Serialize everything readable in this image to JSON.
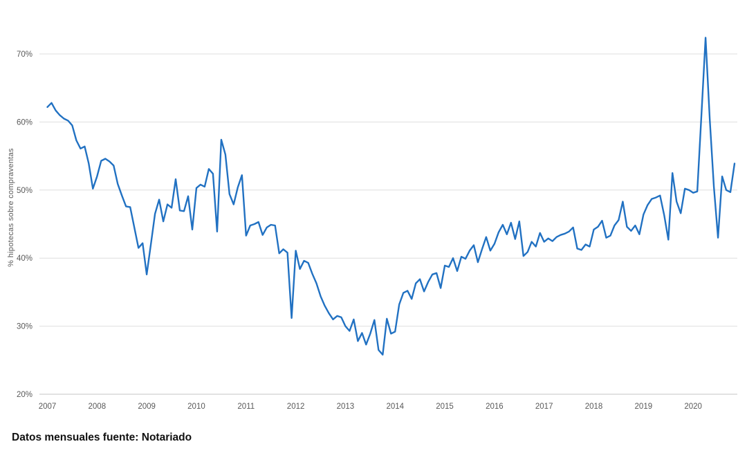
{
  "chart_data": {
    "type": "line",
    "title": "",
    "ylabel": "% hipotecas sobre compraventas",
    "caption": "Datos mensuales fuente: Notariado",
    "grid": "horizontal",
    "legend": "none",
    "line_color": "#2171c2",
    "grid_color": "#dedede",
    "axis_line_color": "#c4c4c4",
    "tick_text_color": "#595959",
    "x_start": "2007-01",
    "x_end": "2020-11",
    "x_tick_labels": [
      "2007",
      "2008",
      "2009",
      "2010",
      "2011",
      "2012",
      "2013",
      "2014",
      "2015",
      "2016",
      "2017",
      "2018",
      "2019",
      "2020"
    ],
    "y_axis": {
      "ylim": [
        20,
        75
      ],
      "ticks": [
        {
          "value": 20,
          "label": "20%"
        },
        {
          "value": 30,
          "label": "30%"
        },
        {
          "value": 40,
          "label": "40%"
        },
        {
          "value": 50,
          "label": "50%"
        },
        {
          "value": 60,
          "label": "60%"
        },
        {
          "value": 70,
          "label": "70%"
        }
      ]
    },
    "series": [
      {
        "name": "% hipotecas sobre compraventas",
        "frequency": "monthly",
        "values": [
          62.2,
          62.8,
          61.7,
          61.0,
          60.5,
          60.2,
          59.5,
          57.3,
          56.1,
          56.4,
          53.9,
          50.2,
          52.0,
          54.3,
          54.6,
          54.2,
          53.6,
          50.9,
          49.2,
          47.6,
          47.5,
          44.5,
          41.5,
          42.2,
          37.6,
          42.0,
          46.5,
          48.6,
          45.4,
          47.9,
          47.4,
          51.6,
          47.0,
          46.9,
          49.1,
          44.2,
          50.3,
          50.8,
          50.5,
          53.1,
          52.4,
          43.9,
          57.4,
          55.2,
          49.4,
          47.9,
          50.4,
          52.2,
          43.3,
          44.8,
          45.0,
          45.3,
          43.4,
          44.5,
          44.9,
          44.8,
          40.7,
          41.3,
          40.8,
          31.2,
          41.1,
          38.4,
          39.6,
          39.3,
          37.7,
          36.3,
          34.4,
          33.0,
          31.9,
          31.0,
          31.5,
          31.3,
          30.0,
          29.3,
          31.0,
          27.8,
          29.0,
          27.3,
          28.9,
          30.9,
          26.5,
          25.8,
          31.1,
          28.9,
          29.2,
          33.2,
          34.9,
          35.2,
          34.0,
          36.3,
          36.9,
          35.1,
          36.5,
          37.6,
          37.8,
          35.6,
          38.9,
          38.7,
          40.0,
          38.1,
          40.2,
          39.9,
          41.1,
          41.9,
          39.4,
          41.3,
          43.1,
          41.1,
          42.1,
          43.8,
          44.9,
          43.5,
          45.2,
          42.8,
          45.4,
          40.3,
          40.9,
          42.4,
          41.7,
          43.7,
          42.4,
          42.9,
          42.5,
          43.1,
          43.4,
          43.6,
          43.9,
          44.5,
          41.4,
          41.2,
          42.0,
          41.7,
          44.2,
          44.6,
          45.5,
          43.0,
          43.3,
          44.8,
          45.6,
          48.3,
          44.6,
          44.0,
          44.8,
          43.5,
          46.4,
          47.8,
          48.7,
          48.9,
          49.2,
          46.3,
          42.7,
          52.5,
          48.3,
          46.6,
          50.2,
          50.0,
          49.6,
          49.8,
          61.0,
          72.4,
          60.5,
          50.5,
          43.0,
          52.0,
          50.0,
          49.7,
          53.9
        ]
      }
    ]
  }
}
